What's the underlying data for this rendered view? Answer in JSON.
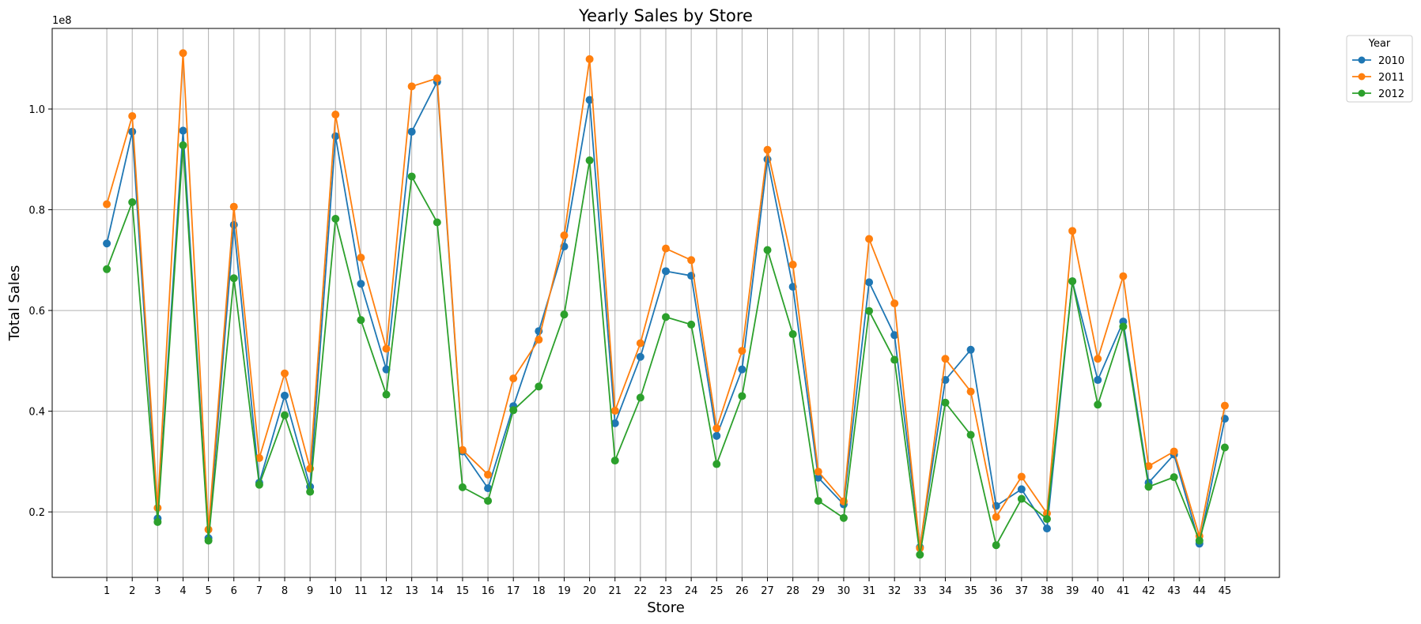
{
  "chart_data": {
    "type": "line",
    "title": "Yearly Sales by Store",
    "xlabel": "Store",
    "ylabel": "Total Sales",
    "y_offset_label": "1e8",
    "y_scale": 100000000,
    "ylim": [
      0.07,
      1.16
    ],
    "yticks": [
      0.2,
      0.4,
      0.6,
      0.8,
      1.0
    ],
    "ytick_labels": [
      "0.2",
      "0.4",
      "0.6",
      "0.8",
      "1.0"
    ],
    "xlim": [
      -1.15,
      47.15
    ],
    "grid": true,
    "legend_placement": "outside-top-right",
    "legend_title": "Year",
    "markers": "circle",
    "categories": [
      "1",
      "2",
      "3",
      "4",
      "5",
      "6",
      "7",
      "8",
      "9",
      "10",
      "11",
      "12",
      "13",
      "14",
      "15",
      "16",
      "17",
      "18",
      "19",
      "20",
      "21",
      "22",
      "23",
      "24",
      "25",
      "26",
      "27",
      "28",
      "29",
      "30",
      "31",
      "32",
      "33",
      "34",
      "35",
      "36",
      "37",
      "38",
      "39",
      "40",
      "41",
      "42",
      "43",
      "44",
      "45"
    ],
    "series": [
      {
        "name": "2010",
        "color": "#1f77b4",
        "values": [
          0.733,
          0.955,
          0.187,
          0.957,
          0.148,
          0.77,
          0.258,
          0.431,
          0.25,
          0.946,
          0.653,
          0.483,
          0.955,
          1.054,
          0.32,
          0.247,
          0.41,
          0.559,
          0.727,
          1.018,
          0.376,
          0.508,
          0.678,
          0.669,
          0.351,
          0.483,
          0.9,
          0.647,
          0.268,
          0.215,
          0.656,
          0.551,
          0.13,
          0.462,
          0.522,
          0.212,
          0.245,
          0.167,
          0.658,
          0.462,
          0.578,
          0.258,
          0.314,
          0.137,
          0.385
        ]
      },
      {
        "name": "2011",
        "color": "#ff7f0e",
        "values": [
          0.811,
          0.986,
          0.208,
          1.111,
          0.165,
          0.806,
          0.307,
          0.475,
          0.286,
          0.989,
          0.705,
          0.524,
          1.045,
          1.061,
          0.323,
          0.274,
          0.465,
          0.542,
          0.749,
          1.099,
          0.401,
          0.535,
          0.723,
          0.7,
          0.366,
          0.52,
          0.919,
          0.691,
          0.28,
          0.221,
          0.742,
          0.614,
          0.128,
          0.504,
          0.439,
          0.19,
          0.27,
          0.197,
          0.758,
          0.504,
          0.668,
          0.291,
          0.32,
          0.152,
          0.411
        ]
      },
      {
        "name": "2012",
        "color": "#2ca02c",
        "values": [
          0.682,
          0.815,
          0.18,
          0.928,
          0.143,
          0.664,
          0.254,
          0.392,
          0.24,
          0.782,
          0.581,
          0.433,
          0.866,
          0.775,
          0.249,
          0.222,
          0.402,
          0.449,
          0.592,
          0.898,
          0.302,
          0.427,
          0.587,
          0.572,
          0.295,
          0.43,
          0.72,
          0.553,
          0.222,
          0.188,
          0.599,
          0.502,
          0.115,
          0.417,
          0.353,
          0.134,
          0.226,
          0.186,
          0.658,
          0.413,
          0.568,
          0.25,
          0.269,
          0.143,
          0.328
        ]
      }
    ]
  }
}
